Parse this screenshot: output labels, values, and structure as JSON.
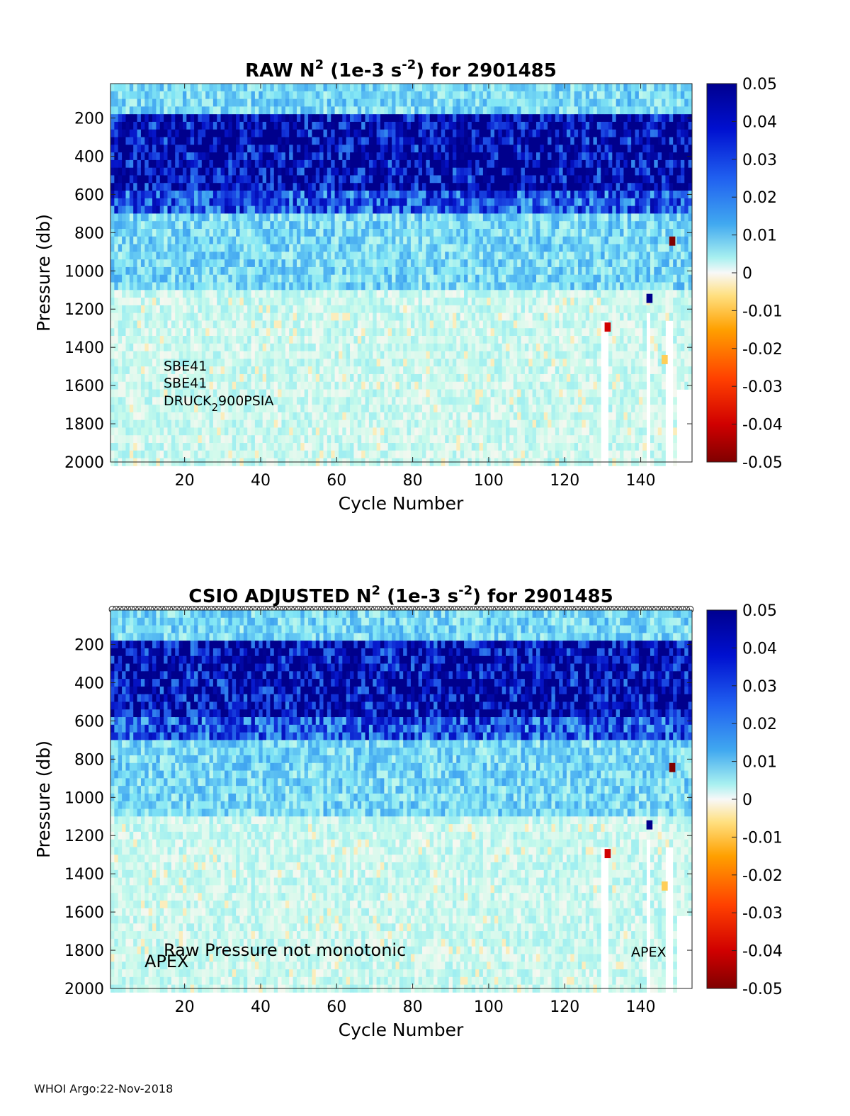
{
  "footer": "WHOI Argo:22-Nov-2018",
  "chart_data": [
    {
      "type": "heatmap",
      "title_prefix": "RAW N",
      "title_sup1": "2",
      "title_mid": " (1e-3 s",
      "title_sup2": "-2",
      "title_suffix": ") for 2901485",
      "xlabel": "Cycle Number",
      "ylabel": "Pressure (db)",
      "xlim": [
        1,
        153
      ],
      "ylim": [
        2000,
        20
      ],
      "xticks": [
        20,
        40,
        60,
        80,
        100,
        120,
        140
      ],
      "yticks": [
        200,
        400,
        600,
        800,
        1000,
        1200,
        1400,
        1600,
        1800,
        2000
      ],
      "colorbar": {
        "ticks": [
          "0.05",
          "0.04",
          "0.03",
          "0.02",
          "0.01",
          "0",
          "-0.01",
          "-0.02",
          "-0.03",
          "-0.04",
          "-0.05"
        ],
        "clim": [
          -0.05,
          0.05
        ]
      },
      "annotations": {
        "line1": "SBE41",
        "line2": "SBE41",
        "line3_a": "DRUCK",
        "line3_sub": "2",
        "line3_b": "900PSIA"
      },
      "profile_depth_bands": [
        {
          "p_min": 20,
          "p_max": 150,
          "n2": 0.012
        },
        {
          "p_min": 150,
          "p_max": 560,
          "n2": 0.045
        },
        {
          "p_min": 560,
          "p_max": 700,
          "n2": 0.03
        },
        {
          "p_min": 700,
          "p_max": 1100,
          "n2": 0.012
        },
        {
          "p_min": 1100,
          "p_max": 2000,
          "n2": 0.004
        }
      ],
      "anomalies": [
        {
          "cycle": 131,
          "pressure": 1270,
          "n2": -0.04
        },
        {
          "cycle": 148,
          "pressure": 820,
          "n2": -0.05
        },
        {
          "cycle": 142,
          "pressure": 1120,
          "n2": 0.05
        },
        {
          "cycle": 146,
          "pressure": 1440,
          "n2": -0.012
        }
      ]
    },
    {
      "type": "heatmap",
      "title_prefix": "CSIO  ADJUSTED N",
      "title_sup1": "2",
      "title_mid": " (1e-3 s",
      "title_sup2": "-2",
      "title_suffix": ") for 2901485",
      "xlabel": "Cycle Number",
      "ylabel": "Pressure (db)",
      "xlim": [
        1,
        153
      ],
      "ylim": [
        2000,
        20
      ],
      "xticks": [
        20,
        40,
        60,
        80,
        100,
        120,
        140
      ],
      "yticks": [
        200,
        400,
        600,
        800,
        1000,
        1200,
        1400,
        1600,
        1800,
        2000
      ],
      "colorbar": {
        "ticks": [
          "0.05",
          "0.04",
          "0.03",
          "0.02",
          "0.01",
          "0",
          "-0.01",
          "-0.02",
          "-0.03",
          "-0.04",
          "-0.05"
        ],
        "clim": [
          -0.05,
          0.05
        ]
      },
      "annotations": {
        "main": "Raw Pressure not monotonic",
        "left": "APEX",
        "right": "APEX"
      },
      "profile_depth_bands": [
        {
          "p_min": 20,
          "p_max": 150,
          "n2": 0.012
        },
        {
          "p_min": 150,
          "p_max": 560,
          "n2": 0.045
        },
        {
          "p_min": 560,
          "p_max": 700,
          "n2": 0.03
        },
        {
          "p_min": 700,
          "p_max": 1100,
          "n2": 0.012
        },
        {
          "p_min": 1100,
          "p_max": 2000,
          "n2": 0.004
        }
      ],
      "anomalies": [
        {
          "cycle": 131,
          "pressure": 1270,
          "n2": -0.04
        },
        {
          "cycle": 148,
          "pressure": 820,
          "n2": -0.05
        },
        {
          "cycle": 142,
          "pressure": 1120,
          "n2": 0.05
        },
        {
          "cycle": 146,
          "pressure": 1440,
          "n2": -0.012
        }
      ]
    }
  ]
}
